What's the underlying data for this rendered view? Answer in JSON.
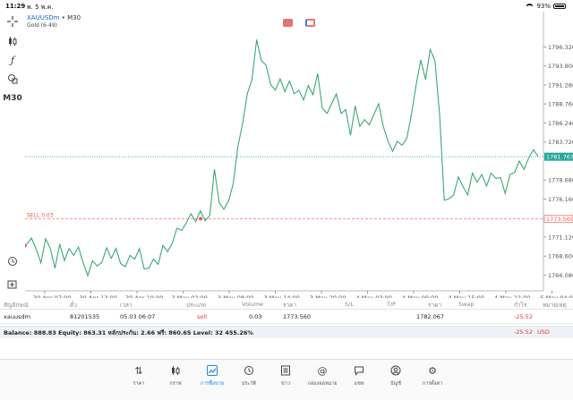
{
  "status_bar": {
    "time": "11:29",
    "date": "พ. 5 พ.ค.",
    "battery": "93%"
  },
  "toolbar": {
    "crosshair_icon": "crosshair-icon",
    "candles_icon": "candles-icon",
    "indicator_icon": "f-icon",
    "objects_icon": "objects-icon",
    "timeframe": "M30",
    "bottom_icons": [
      "history-clock-icon",
      "add-panel-icon"
    ]
  },
  "chart": {
    "symbol": "XAUUSDm",
    "timeframe": "M30",
    "description": "Gold (6-49)",
    "line_color": "#3aa876",
    "bid_line_color": "#26a69a",
    "sell_line_color": "#ef5350",
    "sell_label": "SELL 0.03",
    "current_price_label": "1781.767",
    "sell_price_label": "1773.560"
  },
  "chart_data": {
    "type": "line",
    "title": "",
    "ylim": [
      1764.0,
      1801.0
    ],
    "y_ticks": [
      1796.32,
      1793.8,
      1791.28,
      1788.76,
      1786.24,
      1783.72,
      1778.68,
      1776.16,
      1771.12,
      1768.6,
      1766.08
    ],
    "y_tick_labels": [
      "1796.320",
      "1793.800",
      "1791.280",
      "1788.760",
      "1786.240",
      "1783.720",
      "1778.680",
      "1776.160",
      "1771.120",
      "1768.600",
      "1766.080"
    ],
    "x_labels": [
      "30 Apr 07:00",
      "30 Apr 13:00",
      "30 Apr 19:00",
      "3 May 02:00",
      "3 May 08:00",
      "3 May 14:00",
      "3 May 20:00",
      "4 May 03:00",
      "4 May 09:00",
      "4 May 15:00",
      "4 May 22:00",
      "5 May 04:00"
    ],
    "current_price": 1781.767,
    "sell_price": 1773.56,
    "series": [
      {
        "values": [
          1770.2,
          1771.0,
          1769.5,
          1767.7,
          1770.9,
          1769.6,
          1767.0,
          1770.2,
          1768.0,
          1769.6,
          1768.7,
          1769.8,
          1767.7,
          1766.0,
          1768.0,
          1767.3,
          1767.8,
          1769.7,
          1768.3,
          1769.6,
          1767.6,
          1767.2,
          1768.7,
          1768.2,
          1769.6,
          1766.9,
          1767.0,
          1768.2,
          1767.5,
          1770.0,
          1769.2,
          1770.3,
          1772.3,
          1772.0,
          1773.0,
          1774.2,
          1773.2,
          1774.6,
          1773.3,
          1774.0,
          1780.1,
          1775.7,
          1774.8,
          1775.9,
          1778.2,
          1783.1,
          1786.2,
          1790.1,
          1792.0,
          1797.3,
          1794.5,
          1793.9,
          1791.3,
          1790.6,
          1792.1,
          1790.4,
          1791.8,
          1790.1,
          1790.6,
          1789.3,
          1791.2,
          1790.0,
          1792.8,
          1788.2,
          1787.5,
          1788.8,
          1790.1,
          1787.5,
          1788.0,
          1784.6,
          1788.5,
          1785.8,
          1786.7,
          1786.0,
          1787.4,
          1788.8,
          1785.8,
          1783.8,
          1782.5,
          1783.8,
          1783.3,
          1784.2,
          1787.4,
          1791.3,
          1794.6,
          1792.0,
          1796.0,
          1794.5,
          1787.4,
          1776.0,
          1776.2,
          1776.7,
          1779.1,
          1777.8,
          1776.7,
          1779.6,
          1778.4,
          1779.4,
          1777.9,
          1779.6,
          1778.9,
          1779.0,
          1776.9,
          1779.4,
          1779.7,
          1781.2,
          1780.1,
          1781.6,
          1782.7,
          1781.8
        ]
      }
    ]
  },
  "positions_table": {
    "headers": [
      "สัญลักษณ์",
      "ตั๋ว",
      "เวลา",
      "ประเภท",
      "Volume",
      "ราคา",
      "S/L",
      "T/P",
      "ราคา",
      "Swap",
      "กำไร",
      "หมายเหตุ"
    ],
    "rows": [
      {
        "symbol": "xauusdm",
        "ticket": "81201535",
        "time": "05.03 06:07",
        "type": "sell",
        "volume": "0.03",
        "open_price": "1773.560",
        "sl": "",
        "tp": "",
        "current_price": "1782.067",
        "swap": "",
        "profit": "-25.52",
        "comment": ""
      }
    ]
  },
  "balance_bar": {
    "text": "Balance: 888.83 Equity: 863.31 หลักประกัน: 2.66 ฟรี: 860.65 Level: 32 455.26%",
    "profit": "-25.52",
    "currency": "USD"
  },
  "bottom_nav": {
    "items": [
      {
        "label": "ราคา",
        "icon": "quotes-arrows-icon"
      },
      {
        "label": "กราฟ",
        "icon": "chart-candles-icon"
      },
      {
        "label": "การซื้อขาย",
        "icon": "trade-chart-icon",
        "active": true
      },
      {
        "label": "ประวัติ",
        "icon": "history-icon"
      },
      {
        "label": "ข่าว",
        "icon": "news-icon"
      },
      {
        "label": "กล่องจดหมาย",
        "icon": "mailbox-at-icon"
      },
      {
        "label": "แชท",
        "icon": "chat-icon"
      },
      {
        "label": "บัญชี",
        "icon": "account-icon"
      },
      {
        "label": "การตั้งค่า",
        "icon": "settings-gear-icon"
      }
    ],
    "accent": "#1e88e5"
  }
}
